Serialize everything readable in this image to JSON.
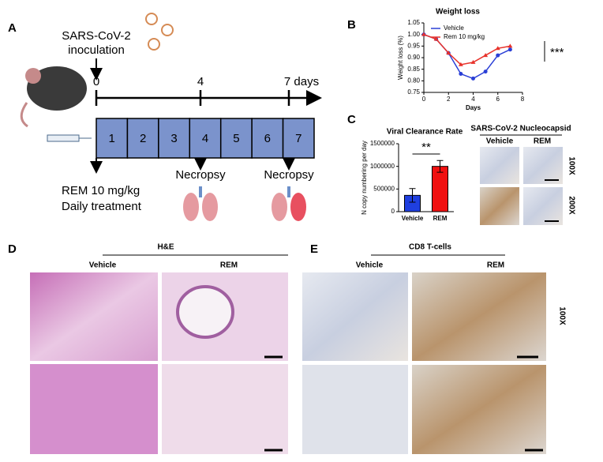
{
  "panel_labels": [
    "A",
    "B",
    "C",
    "D",
    "E"
  ],
  "panel_a": {
    "inoculation": [
      "SARS-CoV-2",
      "inoculation"
    ],
    "timeline_labels": [
      "0",
      "4",
      "7 days"
    ],
    "days": [
      "1",
      "2",
      "3",
      "4",
      "5",
      "6",
      "7"
    ],
    "treatment": [
      "REM 10 mg/kg",
      "Daily treatment"
    ],
    "necropsy": [
      "Necropsy",
      "Necropsy"
    ]
  },
  "chart_data": [
    {
      "type": "line",
      "title": "Weight loss",
      "x_label": "Days",
      "y_label": "Weight loss (%)",
      "x": [
        0,
        1,
        2,
        3,
        4,
        5,
        6,
        7
      ],
      "xlim": [
        0,
        8
      ],
      "xticks": [
        0,
        2,
        4,
        6,
        8
      ],
      "ylim": [
        0.75,
        1.05
      ],
      "yticks": [
        {
          "value": 0.75,
          "label": "0.75"
        },
        {
          "value": 0.8,
          "label": "0.80"
        },
        {
          "value": 0.85,
          "label": "0.85"
        },
        {
          "value": 0.9,
          "label": "0.90"
        },
        {
          "value": 0.95,
          "label": "0.95"
        },
        {
          "value": 1.0,
          "label": "1.00"
        },
        {
          "value": 1.05,
          "label": "1.05"
        }
      ],
      "legend": "upper left",
      "annotation": "***",
      "series": [
        {
          "name": "Vehicle",
          "color": "#2a3fd6",
          "values": [
            1.0,
            0.98,
            0.92,
            0.83,
            0.81,
            0.84,
            0.91,
            0.935
          ]
        },
        {
          "name": "Rem 10 mg/kg",
          "color": "#e8322b",
          "values": [
            1.0,
            0.98,
            0.92,
            0.87,
            0.88,
            0.91,
            0.94,
            0.95
          ]
        }
      ]
    },
    {
      "type": "bar",
      "title": "Viral Clearance Rate",
      "y_label": "N copy numbering per day",
      "categories": [
        "Vehicle",
        "REM"
      ],
      "values": [
        360000,
        1000000
      ],
      "errors": [
        150000,
        130000
      ],
      "colors": [
        "#1f3fe0",
        "#f01010"
      ],
      "ylim": [
        0,
        1500000
      ],
      "yticks": [
        0,
        500000,
        1000000,
        1500000
      ],
      "annotation": "**"
    }
  ],
  "panel_c_images": {
    "title": "SARS-CoV-2 Nucleocapsid",
    "columns": [
      "Vehicle",
      "REM"
    ],
    "rows": [
      "100X",
      "200X"
    ]
  },
  "panel_d": {
    "title": "H&E",
    "columns": [
      "Vehicle",
      "REM"
    ]
  },
  "panel_e": {
    "title": "CD8 T-cells",
    "columns": [
      "Vehicle",
      "REM"
    ],
    "rows": [
      "100X"
    ]
  }
}
